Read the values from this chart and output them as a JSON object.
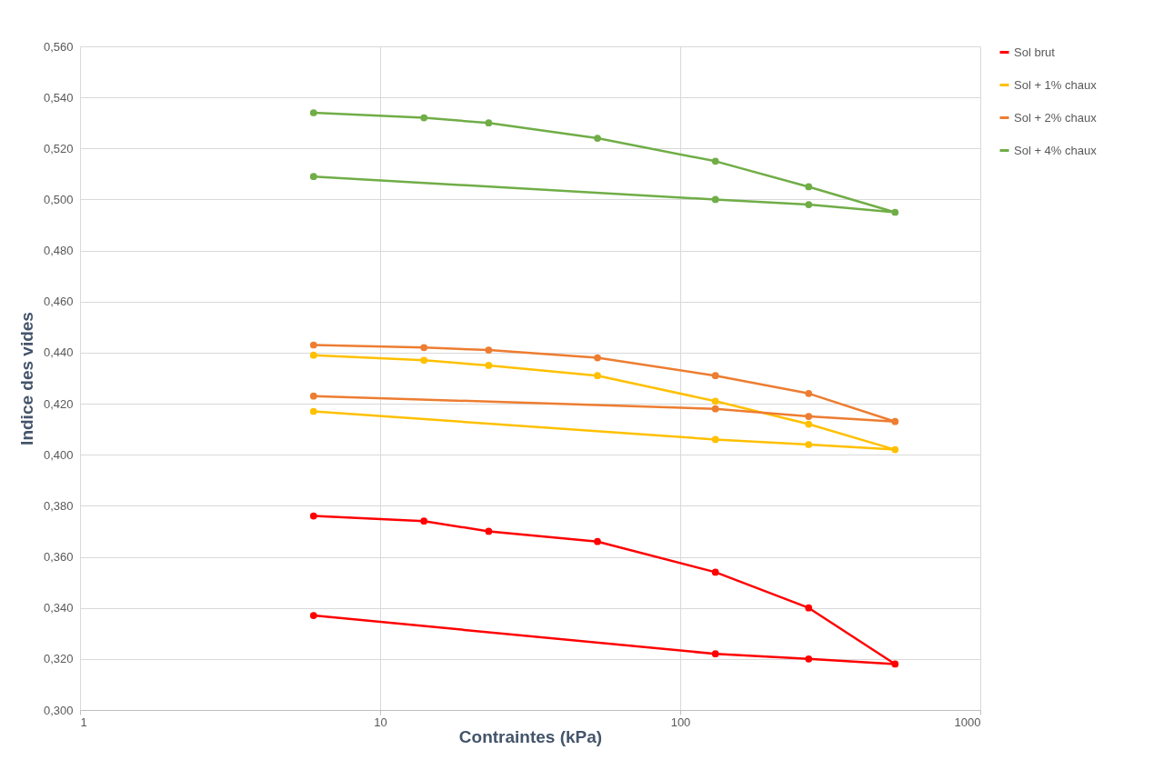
{
  "chart_data": {
    "type": "line",
    "xlabel": "Contraintes (kPa)",
    "ylabel": "Indice des vides",
    "log": "x",
    "grid": true,
    "legend": "right",
    "marker": "circle",
    "line_style": "solid",
    "xlim": [
      1,
      1000
    ],
    "xticks": [
      1,
      10,
      100,
      1000
    ],
    "ylim": [
      0.3,
      0.56
    ],
    "yticks": [
      {
        "value": 0.3,
        "label": "0,300"
      },
      {
        "value": 0.32,
        "label": "0,320"
      },
      {
        "value": 0.34,
        "label": "0,340"
      },
      {
        "value": 0.36,
        "label": "0,360"
      },
      {
        "value": 0.38,
        "label": "0,380"
      },
      {
        "value": 0.4,
        "label": "0,400"
      },
      {
        "value": 0.42,
        "label": "0,420"
      },
      {
        "value": 0.44,
        "label": "0,440"
      },
      {
        "value": 0.46,
        "label": "0,460"
      },
      {
        "value": 0.48,
        "label": "0,480"
      },
      {
        "value": 0.5,
        "label": "0,500"
      },
      {
        "value": 0.52,
        "label": "0,520"
      },
      {
        "value": 0.54,
        "label": "0,540"
      },
      {
        "value": 0.56,
        "label": "0,560"
      }
    ],
    "x": [
      6,
      14,
      23,
      53,
      131,
      268,
      520,
      268,
      131,
      6
    ],
    "series": [
      {
        "name": "Sol brut",
        "color": "#ff0000",
        "values": [
          0.376,
          0.374,
          0.37,
          0.366,
          0.354,
          0.34,
          0.318,
          0.32,
          0.322,
          0.337
        ]
      },
      {
        "name": "Sol + 1% chaux",
        "color": "#ffc000",
        "values": [
          0.439,
          0.437,
          0.435,
          0.431,
          0.421,
          0.412,
          0.402,
          0.404,
          0.406,
          0.417
        ]
      },
      {
        "name": "Sol + 2% chaux",
        "color": "#ed7d31",
        "values": [
          0.443,
          0.442,
          0.441,
          0.438,
          0.431,
          0.424,
          0.413,
          0.415,
          0.418,
          0.423
        ]
      },
      {
        "name": "Sol + 4% chaux",
        "color": "#70ad47",
        "values": [
          0.534,
          0.532,
          0.53,
          0.524,
          0.515,
          0.505,
          0.495,
          0.498,
          0.5,
          0.509
        ]
      }
    ]
  }
}
